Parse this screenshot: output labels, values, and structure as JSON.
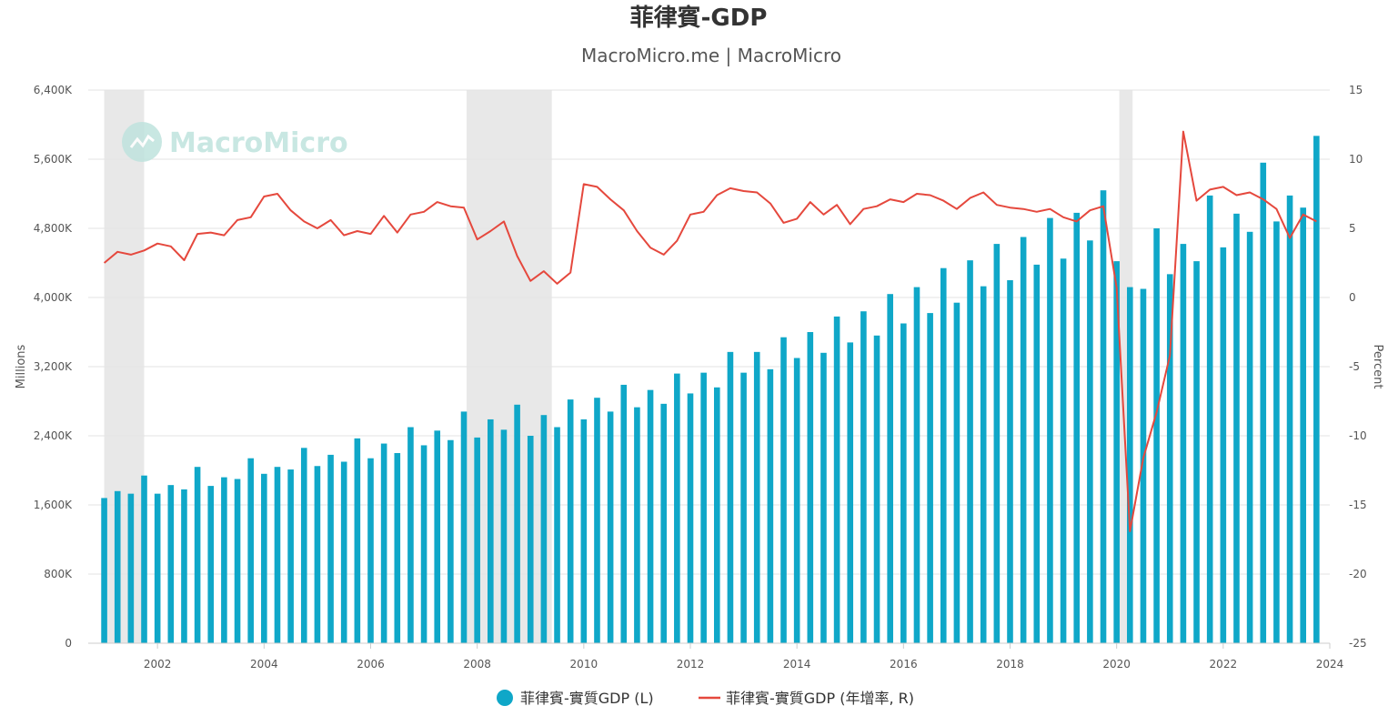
{
  "chart_data": {
    "type": "bar",
    "title": "菲律賓-GDP",
    "subtitle": "MacroMicro.me | MacroMicro",
    "watermark": "MacroMicro",
    "ylabel_left": "Millions",
    "ylabel_right": "Percent",
    "ylim_left": [
      0,
      6400
    ],
    "ylim_right": [
      -25,
      15
    ],
    "y_left_ticks": [
      0,
      800,
      1600,
      2400,
      3200,
      4000,
      4800,
      5600,
      6400
    ],
    "y_left_tick_labels": [
      "0",
      "800K",
      "1,600K",
      "2,400K",
      "3,200K",
      "4,000K",
      "4,800K",
      "5,600K",
      "6,400K"
    ],
    "y_right_ticks": [
      -25,
      -20,
      -15,
      -10,
      -5,
      0,
      5,
      10,
      15
    ],
    "y_right_tick_labels": [
      "-25",
      "-20",
      "-15",
      "-10",
      "-5",
      "0",
      "5",
      "10",
      "15"
    ],
    "xlim": [
      2000.7,
      2024
    ],
    "x_ticks": [
      2002,
      2004,
      2006,
      2008,
      2010,
      2012,
      2014,
      2016,
      2018,
      2020,
      2022,
      2024
    ],
    "x_tick_labels": [
      "2002",
      "2004",
      "2006",
      "2008",
      "2010",
      "2012",
      "2014",
      "2016",
      "2018",
      "2020",
      "2022",
      "2024"
    ],
    "recession_shading": [
      [
        2001.0,
        2001.75
      ],
      [
        2007.8,
        2009.4
      ],
      [
        2020.05,
        2020.3
      ]
    ],
    "grid": true,
    "legend_position": "bottom-center",
    "series": [
      {
        "name": "菲律賓-實質GDP (L)",
        "type": "bar",
        "axis": "left",
        "color": "#0fa7c8",
        "x": [
          "2001-Q1",
          "2001-Q2",
          "2001-Q3",
          "2001-Q4",
          "2002-Q1",
          "2002-Q2",
          "2002-Q3",
          "2002-Q4",
          "2003-Q1",
          "2003-Q2",
          "2003-Q3",
          "2003-Q4",
          "2004-Q1",
          "2004-Q2",
          "2004-Q3",
          "2004-Q4",
          "2005-Q1",
          "2005-Q2",
          "2005-Q3",
          "2005-Q4",
          "2006-Q1",
          "2006-Q2",
          "2006-Q3",
          "2006-Q4",
          "2007-Q1",
          "2007-Q2",
          "2007-Q3",
          "2007-Q4",
          "2008-Q1",
          "2008-Q2",
          "2008-Q3",
          "2008-Q4",
          "2009-Q1",
          "2009-Q2",
          "2009-Q3",
          "2009-Q4",
          "2010-Q1",
          "2010-Q2",
          "2010-Q3",
          "2010-Q4",
          "2011-Q1",
          "2011-Q2",
          "2011-Q3",
          "2011-Q4",
          "2012-Q1",
          "2012-Q2",
          "2012-Q3",
          "2012-Q4",
          "2013-Q1",
          "2013-Q2",
          "2013-Q3",
          "2013-Q4",
          "2014-Q1",
          "2014-Q2",
          "2014-Q3",
          "2014-Q4",
          "2015-Q1",
          "2015-Q2",
          "2015-Q3",
          "2015-Q4",
          "2016-Q1",
          "2016-Q2",
          "2016-Q3",
          "2016-Q4",
          "2017-Q1",
          "2017-Q2",
          "2017-Q3",
          "2017-Q4",
          "2018-Q1",
          "2018-Q2",
          "2018-Q3",
          "2018-Q4",
          "2019-Q1",
          "2019-Q2",
          "2019-Q3",
          "2019-Q4",
          "2020-Q1",
          "2020-Q2",
          "2020-Q3",
          "2020-Q4",
          "2021-Q1",
          "2021-Q2",
          "2021-Q3",
          "2021-Q4",
          "2022-Q1",
          "2022-Q2",
          "2022-Q3",
          "2022-Q4",
          "2023-Q1",
          "2023-Q2",
          "2023-Q3",
          "2023-Q4"
        ],
        "values": [
          1680,
          1760,
          1730,
          1940,
          1730,
          1830,
          1780,
          2040,
          1820,
          1920,
          1900,
          2140,
          1960,
          2040,
          2010,
          2260,
          2050,
          2180,
          2100,
          2370,
          2140,
          2310,
          2200,
          2500,
          2290,
          2460,
          2350,
          2680,
          2380,
          2590,
          2470,
          2760,
          2400,
          2640,
          2500,
          2820,
          2590,
          2840,
          2680,
          2990,
          2730,
          2930,
          2770,
          3120,
          2890,
          3130,
          2960,
          3370,
          3130,
          3370,
          3170,
          3540,
          3300,
          3600,
          3360,
          3780,
          3480,
          3840,
          3560,
          4040,
          3700,
          4120,
          3820,
          4340,
          3940,
          4430,
          4130,
          4620,
          4200,
          4700,
          4380,
          4920,
          4450,
          4980,
          4660,
          5240,
          4420,
          4120,
          4100,
          4800,
          4270,
          4620,
          4420,
          5180,
          4580,
          4970,
          4760,
          5560,
          4880,
          5180,
          5040,
          5870
        ]
      },
      {
        "name": "菲律賓-實質GDP (年增率, R)",
        "type": "line",
        "axis": "right",
        "color": "#e5483d",
        "x": [
          "2001-Q1",
          "2001-Q2",
          "2001-Q3",
          "2001-Q4",
          "2002-Q1",
          "2002-Q2",
          "2002-Q3",
          "2002-Q4",
          "2003-Q1",
          "2003-Q2",
          "2003-Q3",
          "2003-Q4",
          "2004-Q1",
          "2004-Q2",
          "2004-Q3",
          "2004-Q4",
          "2005-Q1",
          "2005-Q2",
          "2005-Q3",
          "2005-Q4",
          "2006-Q1",
          "2006-Q2",
          "2006-Q3",
          "2006-Q4",
          "2007-Q1",
          "2007-Q2",
          "2007-Q3",
          "2007-Q4",
          "2008-Q1",
          "2008-Q2",
          "2008-Q3",
          "2008-Q4",
          "2009-Q1",
          "2009-Q2",
          "2009-Q3",
          "2009-Q4",
          "2010-Q1",
          "2010-Q2",
          "2010-Q3",
          "2010-Q4",
          "2011-Q1",
          "2011-Q2",
          "2011-Q3",
          "2011-Q4",
          "2012-Q1",
          "2012-Q2",
          "2012-Q3",
          "2012-Q4",
          "2013-Q1",
          "2013-Q2",
          "2013-Q3",
          "2013-Q4",
          "2014-Q1",
          "2014-Q2",
          "2014-Q3",
          "2014-Q4",
          "2015-Q1",
          "2015-Q2",
          "2015-Q3",
          "2015-Q4",
          "2016-Q1",
          "2016-Q2",
          "2016-Q3",
          "2016-Q4",
          "2017-Q1",
          "2017-Q2",
          "2017-Q3",
          "2017-Q4",
          "2018-Q1",
          "2018-Q2",
          "2018-Q3",
          "2018-Q4",
          "2019-Q1",
          "2019-Q2",
          "2019-Q3",
          "2019-Q4",
          "2020-Q1",
          "2020-Q2",
          "2020-Q3",
          "2020-Q4",
          "2021-Q1",
          "2021-Q2",
          "2021-Q3",
          "2021-Q4",
          "2022-Q1",
          "2022-Q2",
          "2022-Q3",
          "2022-Q4",
          "2023-Q1",
          "2023-Q2",
          "2023-Q3",
          "2023-Q4"
        ],
        "values": [
          2.5,
          3.3,
          3.1,
          3.4,
          3.9,
          3.7,
          2.7,
          4.6,
          4.7,
          4.5,
          5.6,
          5.8,
          7.3,
          7.5,
          6.3,
          5.5,
          5.0,
          5.6,
          4.5,
          4.8,
          4.6,
          5.9,
          4.7,
          6.0,
          6.2,
          6.9,
          6.6,
          6.5,
          4.2,
          4.8,
          5.5,
          3.0,
          1.2,
          1.9,
          1.0,
          1.8,
          8.2,
          8.0,
          7.1,
          6.3,
          4.8,
          3.6,
          3.1,
          4.1,
          6.0,
          6.2,
          7.4,
          7.9,
          7.7,
          7.6,
          6.8,
          5.4,
          5.7,
          6.9,
          6.0,
          6.7,
          5.3,
          6.4,
          6.6,
          7.1,
          6.9,
          7.5,
          7.4,
          7.0,
          6.4,
          7.2,
          7.6,
          6.7,
          6.5,
          6.4,
          6.2,
          6.4,
          5.8,
          5.5,
          6.3,
          6.6,
          0.7,
          -16.9,
          -11.6,
          -8.3,
          -4.2,
          12.0,
          7.0,
          7.8,
          8.0,
          7.4,
          7.6,
          7.1,
          6.4,
          4.3,
          6.0,
          5.5
        ]
      }
    ]
  }
}
